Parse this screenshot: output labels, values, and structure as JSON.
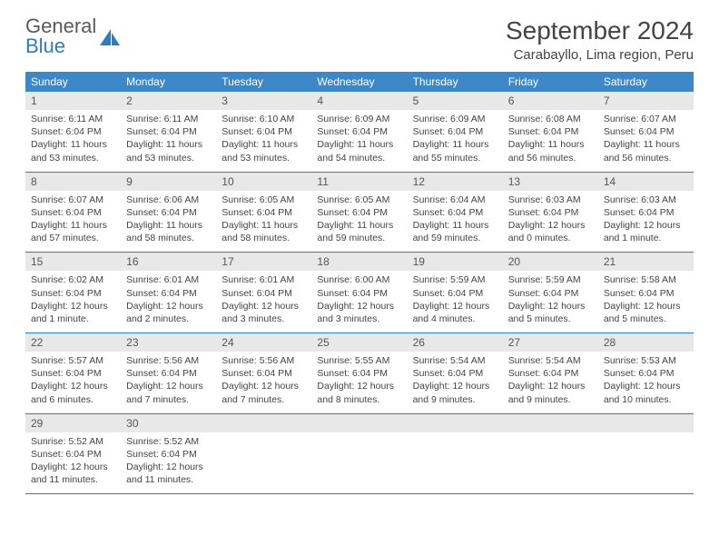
{
  "logo": {
    "text_general": "General",
    "text_blue": "Blue"
  },
  "header": {
    "month_year": "September 2024",
    "location": "Carabayllo, Lima region, Peru"
  },
  "colors": {
    "header_bg": "#3b87c8",
    "header_text": "#ffffff",
    "daynum_bg": "#e8e8e8",
    "border": "#2b7cc0",
    "logo_blue": "#2b7cc0",
    "page_bg": "#ffffff",
    "text": "#444444"
  },
  "typography": {
    "title_fontsize_pt": 21,
    "location_fontsize_pt": 11,
    "weekday_fontsize_pt": 9,
    "daynum_fontsize_pt": 9,
    "body_fontsize_pt": 8
  },
  "calendar": {
    "weekdays": [
      "Sunday",
      "Monday",
      "Tuesday",
      "Wednesday",
      "Thursday",
      "Friday",
      "Saturday"
    ],
    "weeks": [
      [
        {
          "num": "1",
          "sunrise": "Sunrise: 6:11 AM",
          "sunset": "Sunset: 6:04 PM",
          "daylight": "Daylight: 11 hours and 53 minutes."
        },
        {
          "num": "2",
          "sunrise": "Sunrise: 6:11 AM",
          "sunset": "Sunset: 6:04 PM",
          "daylight": "Daylight: 11 hours and 53 minutes."
        },
        {
          "num": "3",
          "sunrise": "Sunrise: 6:10 AM",
          "sunset": "Sunset: 6:04 PM",
          "daylight": "Daylight: 11 hours and 53 minutes."
        },
        {
          "num": "4",
          "sunrise": "Sunrise: 6:09 AM",
          "sunset": "Sunset: 6:04 PM",
          "daylight": "Daylight: 11 hours and 54 minutes."
        },
        {
          "num": "5",
          "sunrise": "Sunrise: 6:09 AM",
          "sunset": "Sunset: 6:04 PM",
          "daylight": "Daylight: 11 hours and 55 minutes."
        },
        {
          "num": "6",
          "sunrise": "Sunrise: 6:08 AM",
          "sunset": "Sunset: 6:04 PM",
          "daylight": "Daylight: 11 hours and 56 minutes."
        },
        {
          "num": "7",
          "sunrise": "Sunrise: 6:07 AM",
          "sunset": "Sunset: 6:04 PM",
          "daylight": "Daylight: 11 hours and 56 minutes."
        }
      ],
      [
        {
          "num": "8",
          "sunrise": "Sunrise: 6:07 AM",
          "sunset": "Sunset: 6:04 PM",
          "daylight": "Daylight: 11 hours and 57 minutes."
        },
        {
          "num": "9",
          "sunrise": "Sunrise: 6:06 AM",
          "sunset": "Sunset: 6:04 PM",
          "daylight": "Daylight: 11 hours and 58 minutes."
        },
        {
          "num": "10",
          "sunrise": "Sunrise: 6:05 AM",
          "sunset": "Sunset: 6:04 PM",
          "daylight": "Daylight: 11 hours and 58 minutes."
        },
        {
          "num": "11",
          "sunrise": "Sunrise: 6:05 AM",
          "sunset": "Sunset: 6:04 PM",
          "daylight": "Daylight: 11 hours and 59 minutes."
        },
        {
          "num": "12",
          "sunrise": "Sunrise: 6:04 AM",
          "sunset": "Sunset: 6:04 PM",
          "daylight": "Daylight: 11 hours and 59 minutes."
        },
        {
          "num": "13",
          "sunrise": "Sunrise: 6:03 AM",
          "sunset": "Sunset: 6:04 PM",
          "daylight": "Daylight: 12 hours and 0 minutes."
        },
        {
          "num": "14",
          "sunrise": "Sunrise: 6:03 AM",
          "sunset": "Sunset: 6:04 PM",
          "daylight": "Daylight: 12 hours and 1 minute."
        }
      ],
      [
        {
          "num": "15",
          "sunrise": "Sunrise: 6:02 AM",
          "sunset": "Sunset: 6:04 PM",
          "daylight": "Daylight: 12 hours and 1 minute."
        },
        {
          "num": "16",
          "sunrise": "Sunrise: 6:01 AM",
          "sunset": "Sunset: 6:04 PM",
          "daylight": "Daylight: 12 hours and 2 minutes."
        },
        {
          "num": "17",
          "sunrise": "Sunrise: 6:01 AM",
          "sunset": "Sunset: 6:04 PM",
          "daylight": "Daylight: 12 hours and 3 minutes."
        },
        {
          "num": "18",
          "sunrise": "Sunrise: 6:00 AM",
          "sunset": "Sunset: 6:04 PM",
          "daylight": "Daylight: 12 hours and 3 minutes."
        },
        {
          "num": "19",
          "sunrise": "Sunrise: 5:59 AM",
          "sunset": "Sunset: 6:04 PM",
          "daylight": "Daylight: 12 hours and 4 minutes."
        },
        {
          "num": "20",
          "sunrise": "Sunrise: 5:59 AM",
          "sunset": "Sunset: 6:04 PM",
          "daylight": "Daylight: 12 hours and 5 minutes."
        },
        {
          "num": "21",
          "sunrise": "Sunrise: 5:58 AM",
          "sunset": "Sunset: 6:04 PM",
          "daylight": "Daylight: 12 hours and 5 minutes."
        }
      ],
      [
        {
          "num": "22",
          "sunrise": "Sunrise: 5:57 AM",
          "sunset": "Sunset: 6:04 PM",
          "daylight": "Daylight: 12 hours and 6 minutes."
        },
        {
          "num": "23",
          "sunrise": "Sunrise: 5:56 AM",
          "sunset": "Sunset: 6:04 PM",
          "daylight": "Daylight: 12 hours and 7 minutes."
        },
        {
          "num": "24",
          "sunrise": "Sunrise: 5:56 AM",
          "sunset": "Sunset: 6:04 PM",
          "daylight": "Daylight: 12 hours and 7 minutes."
        },
        {
          "num": "25",
          "sunrise": "Sunrise: 5:55 AM",
          "sunset": "Sunset: 6:04 PM",
          "daylight": "Daylight: 12 hours and 8 minutes."
        },
        {
          "num": "26",
          "sunrise": "Sunrise: 5:54 AM",
          "sunset": "Sunset: 6:04 PM",
          "daylight": "Daylight: 12 hours and 9 minutes."
        },
        {
          "num": "27",
          "sunrise": "Sunrise: 5:54 AM",
          "sunset": "Sunset: 6:04 PM",
          "daylight": "Daylight: 12 hours and 9 minutes."
        },
        {
          "num": "28",
          "sunrise": "Sunrise: 5:53 AM",
          "sunset": "Sunset: 6:04 PM",
          "daylight": "Daylight: 12 hours and 10 minutes."
        }
      ],
      [
        {
          "num": "29",
          "sunrise": "Sunrise: 5:52 AM",
          "sunset": "Sunset: 6:04 PM",
          "daylight": "Daylight: 12 hours and 11 minutes."
        },
        {
          "num": "30",
          "sunrise": "Sunrise: 5:52 AM",
          "sunset": "Sunset: 6:04 PM",
          "daylight": "Daylight: 12 hours and 11 minutes."
        },
        null,
        null,
        null,
        null,
        null
      ]
    ]
  }
}
